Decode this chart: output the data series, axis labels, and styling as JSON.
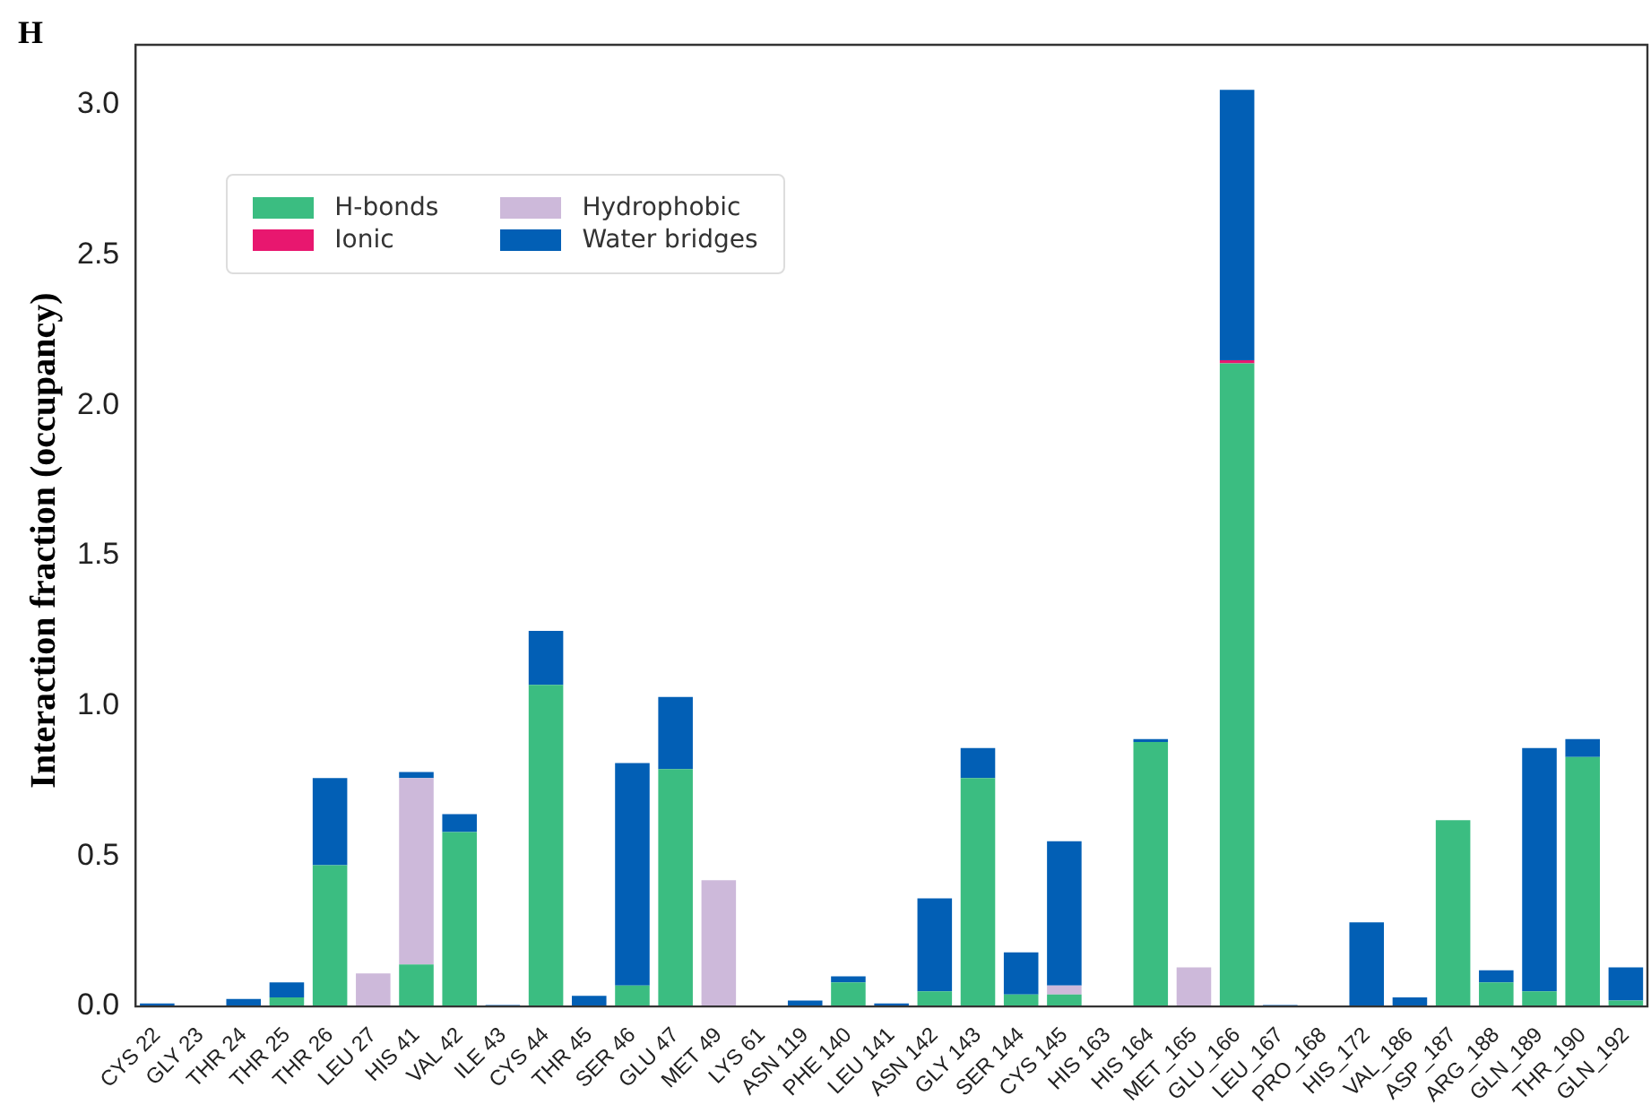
{
  "chart_data": {
    "type": "bar",
    "title": "H",
    "ylabel": "Interaction fraction (occupancy)",
    "stacked": true,
    "legend": "top left",
    "grid": false,
    "categories": [
      "CYS 22",
      "GLY 23",
      "THR 24",
      "THR 25",
      "THR 26",
      "LEU 27",
      "HIS 41",
      "VAL 42",
      "ILE 43",
      "CYS 44",
      "THR 45",
      "SER 46",
      "GLU 47",
      "MET 49",
      "LYS 61",
      "ASN 119",
      "PHE 140",
      "LEU 141",
      "ASN 142",
      "GLY 143",
      "SER 144",
      "CYS 145",
      "HIS 163",
      "HIS 164",
      "MET_165",
      "GLU_166",
      "LEU_167",
      "PRO_168",
      "HIS_172",
      "VAL_186",
      "ASP_187",
      "ARG_188",
      "GLN_189",
      "THR_190",
      "GLN_192"
    ],
    "series": [
      {
        "name": "H-bonds",
        "color": "#3bbd81",
        "values": [
          0,
          0,
          0,
          0.03,
          0.47,
          0,
          0.14,
          0.58,
          0,
          1.07,
          0,
          0.07,
          0.79,
          0,
          0,
          0,
          0.08,
          0,
          0.05,
          0.76,
          0.04,
          0.04,
          0,
          0.88,
          0,
          2.14,
          0,
          0,
          0,
          0,
          0.62,
          0.08,
          0.05,
          0.83,
          0.02
        ]
      },
      {
        "name": "Hydrophobic",
        "color": "#cdb9da",
        "values": [
          0,
          0,
          0,
          0,
          0,
          0.11,
          0.62,
          0,
          0,
          0,
          0,
          0,
          0,
          0.42,
          0,
          0,
          0,
          0,
          0,
          0,
          0,
          0.03,
          0,
          0,
          0.13,
          0,
          0,
          0,
          0,
          0,
          0,
          0,
          0,
          0,
          0
        ]
      },
      {
        "name": "Ionic",
        "color": "#e8176f",
        "values": [
          0,
          0,
          0,
          0,
          0,
          0,
          0,
          0,
          0,
          0,
          0,
          0,
          0,
          0,
          0,
          0,
          0,
          0,
          0,
          0,
          0,
          0,
          0,
          0,
          0,
          0.01,
          0,
          0,
          0,
          0,
          0,
          0,
          0,
          0,
          0
        ]
      },
      {
        "name": "Water bridges",
        "color": "#025fb5",
        "values": [
          0.01,
          0,
          0.025,
          0.05,
          0.29,
          0,
          0.02,
          0.06,
          0.005,
          0.18,
          0.035,
          0.74,
          0.24,
          0,
          0,
          0.02,
          0.02,
          0.01,
          0.31,
          0.1,
          0.14,
          0.48,
          0,
          0.01,
          0,
          0.9,
          0.005,
          0,
          0.28,
          0.03,
          0,
          0.04,
          0.81,
          0.06,
          0.11
        ]
      }
    ],
    "ylim": [
      0,
      3.2
    ],
    "yticks": [
      {
        "value": 0,
        "label": "0.0"
      },
      {
        "value": 0.5,
        "label": "0.5"
      },
      {
        "value": 1,
        "label": "1.0"
      },
      {
        "value": 1.5,
        "label": "1.5"
      },
      {
        "value": 2,
        "label": "2.0"
      },
      {
        "value": 2.5,
        "label": "2.5"
      },
      {
        "value": 3,
        "label": "3.0"
      }
    ]
  }
}
